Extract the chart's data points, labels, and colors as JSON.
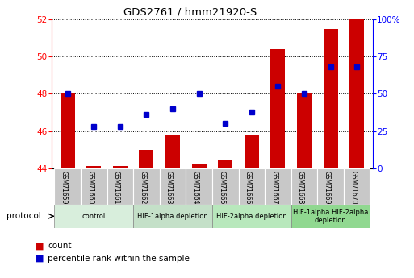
{
  "title": "GDS2761 / hmm21920-S",
  "samples": [
    "GSM71659",
    "GSM71660",
    "GSM71661",
    "GSM71662",
    "GSM71663",
    "GSM71664",
    "GSM71665",
    "GSM71666",
    "GSM71667",
    "GSM71668",
    "GSM71669",
    "GSM71670"
  ],
  "count": [
    48.0,
    44.1,
    44.1,
    45.0,
    45.8,
    44.2,
    44.4,
    45.8,
    50.4,
    48.0,
    51.5,
    52.0
  ],
  "percentile_pct": [
    50.0,
    28.0,
    28.0,
    36.0,
    40.0,
    50.0,
    30.0,
    38.0,
    55.0,
    50.0,
    68.0,
    68.0
  ],
  "count_baseline": 44.0,
  "ylim_left": [
    44,
    52
  ],
  "ylim_right": [
    0,
    100
  ],
  "yticks_left": [
    44,
    46,
    48,
    50,
    52
  ],
  "yticks_right": [
    0,
    25,
    50,
    75,
    100
  ],
  "ytick_labels_right": [
    "0",
    "25",
    "50",
    "75",
    "100%"
  ],
  "bar_color": "#cc0000",
  "dot_color": "#0000cc",
  "bar_width": 0.55,
  "group_boundaries": [
    {
      "label": "control",
      "start": 0,
      "end": 2,
      "color": "#d8eedc"
    },
    {
      "label": "HIF-1alpha depletion",
      "start": 3,
      "end": 5,
      "color": "#c4e0c8"
    },
    {
      "label": "HIF-2alpha depletion",
      "start": 6,
      "end": 8,
      "color": "#b8e8bc"
    },
    {
      "label": "HIF-1alpha HIF-2alpha\ndepletion",
      "start": 9,
      "end": 11,
      "color": "#90d890"
    }
  ],
  "protocol_label": "protocol",
  "legend_count_label": "count",
  "legend_pct_label": "percentile rank within the sample"
}
